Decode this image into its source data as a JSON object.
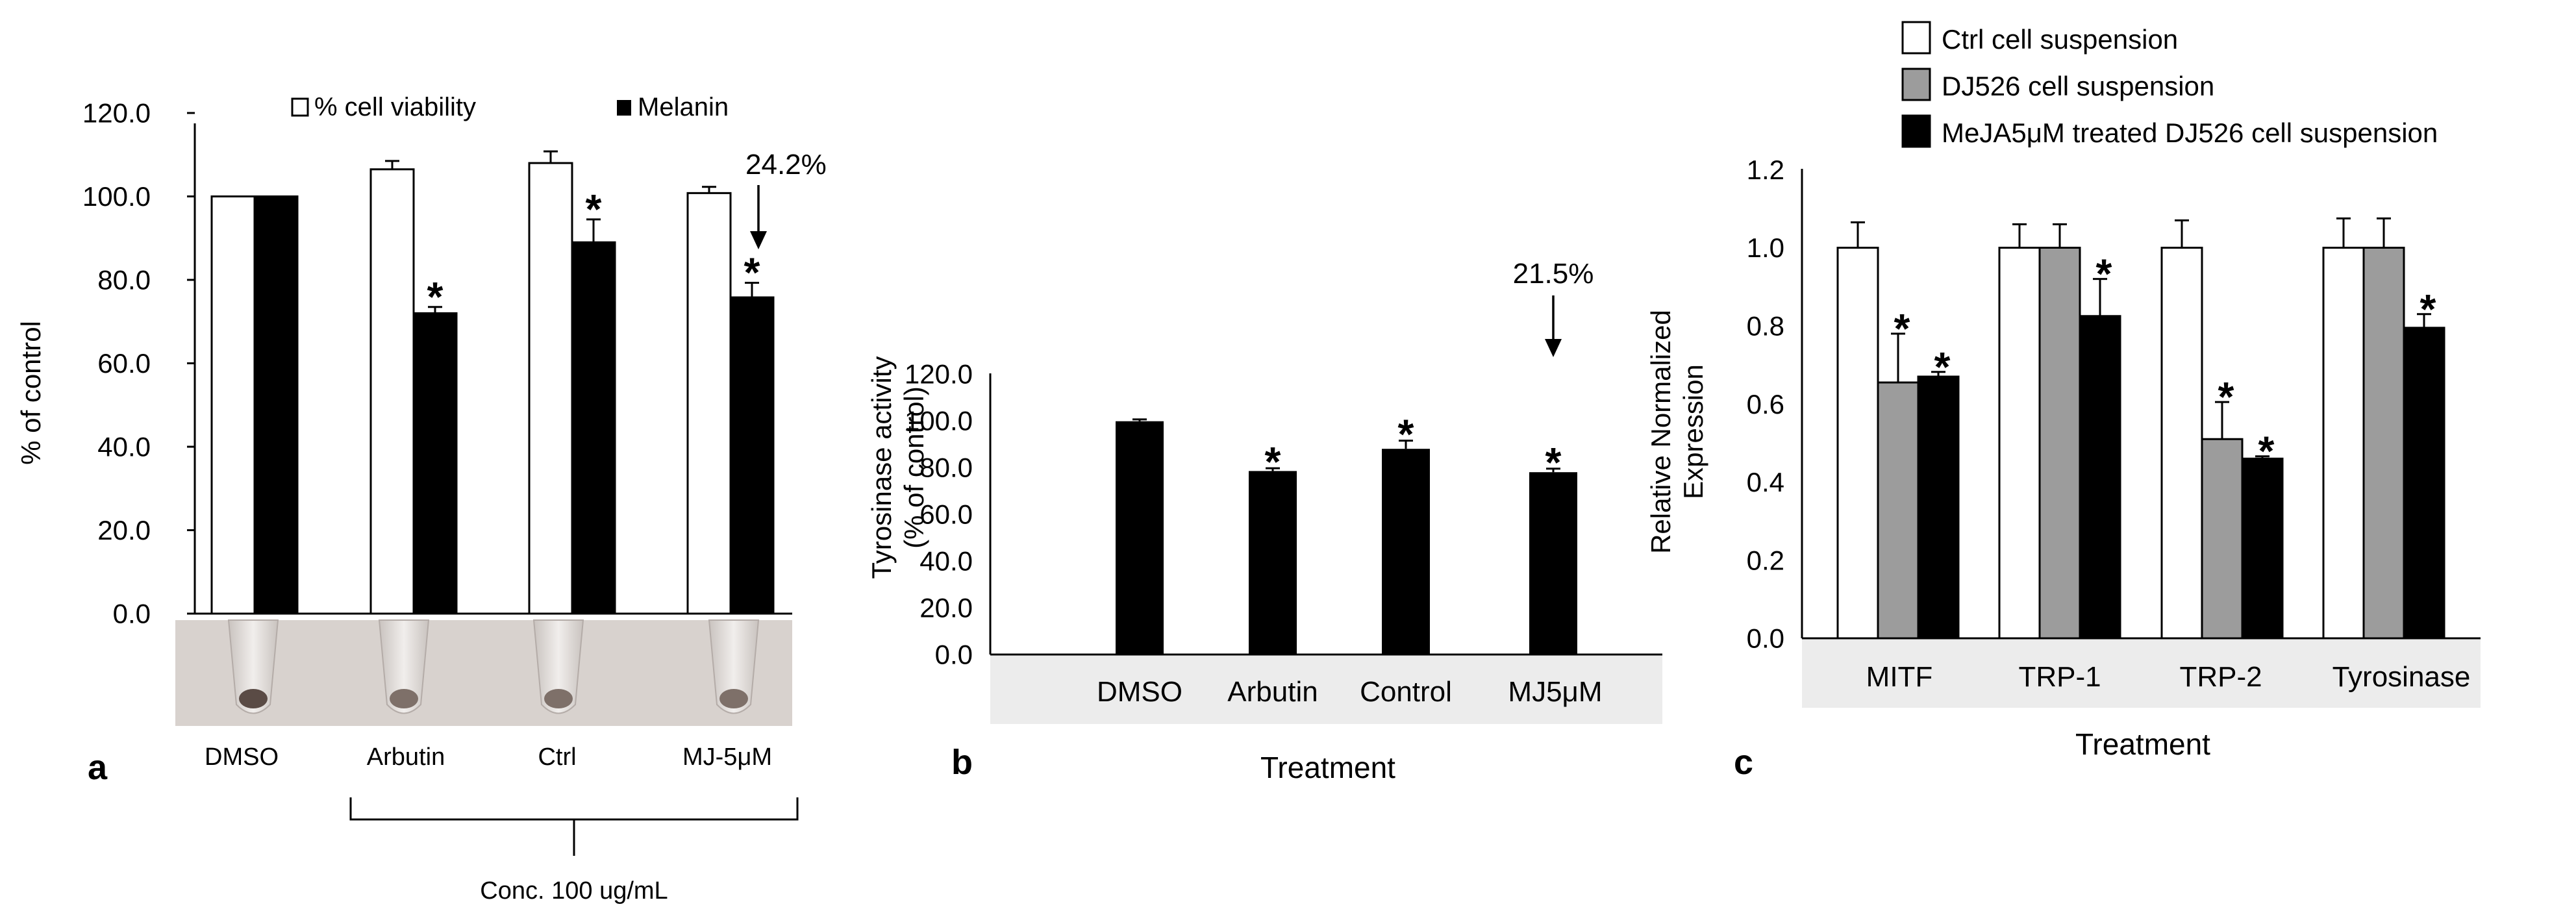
{
  "colors": {
    "white_bar": "#ffffff",
    "gray_bar": "#9c9c9c",
    "black_bar": "#000000",
    "band": "#ececec",
    "tube_band": "#d9d3cf"
  },
  "chart_data": [
    {
      "panel": "a",
      "type": "bar",
      "ylabel": "% of control",
      "ylim": [
        0,
        120
      ],
      "yticks": [
        "0.0",
        "20.0",
        "40.0",
        "60.0",
        "80.0",
        "100.0",
        "120.0"
      ],
      "categories": [
        "DMSO",
        "Arbutin",
        "Ctrl",
        "MJ-5μM"
      ],
      "series": [
        {
          "name": "% cell viability",
          "color": "white",
          "values": [
            100,
            106.5,
            108,
            100.8
          ],
          "errors": [
            0,
            2,
            2.8,
            1.5
          ],
          "sig": [
            false,
            false,
            false,
            false
          ]
        },
        {
          "name": "Melanin",
          "color": "black",
          "values": [
            100,
            72,
            89,
            75.8
          ],
          "errors": [
            0,
            1.5,
            5.5,
            3.5
          ],
          "sig": [
            false,
            true,
            true,
            true
          ]
        }
      ],
      "annotation": "24.2%",
      "legend": [
        "% cell viability",
        "Melanin"
      ],
      "bracket_label": "Conc. 100 ug/mL"
    },
    {
      "panel": "b",
      "type": "bar",
      "ylabel": [
        "Tyrosinase activity",
        "(% of control)"
      ],
      "xlabel": "Treatment",
      "ylim": [
        0,
        120
      ],
      "yticks": [
        "0.0",
        "20.0",
        "40.0",
        "60.0",
        "80.0",
        "100.0",
        "120.0"
      ],
      "categories": [
        "DMSO",
        "Arbutin",
        "Control",
        "MJ5μM"
      ],
      "values": [
        99.8,
        78.5,
        88,
        78
      ],
      "errors": [
        0.8,
        1.2,
        3.5,
        1.5
      ],
      "sig": [
        false,
        true,
        true,
        true
      ],
      "annotation": "21.5%"
    },
    {
      "panel": "c",
      "type": "bar",
      "ylabel": [
        "Relative Normalized",
        "Expression"
      ],
      "xlabel": "Treatment",
      "ylim": [
        0,
        1.2
      ],
      "yticks": [
        "0.0",
        "0.2",
        "0.4",
        "0.6",
        "0.8",
        "1.0",
        "1.2"
      ],
      "categories": [
        "MITF",
        "TRP-1",
        "TRP-2",
        "Tyrosinase"
      ],
      "series": [
        {
          "name": "Ctrl cell suspension",
          "color": "white",
          "values": [
            1.0,
            1.0,
            1.0,
            1.0
          ],
          "errors": [
            0.065,
            0.06,
            0.07,
            0.075
          ],
          "sig": [
            false,
            false,
            false,
            false
          ]
        },
        {
          "name": "DJ526 cell suspension",
          "color": "gray",
          "values": [
            0.655,
            1.0,
            0.51,
            1.0
          ],
          "errors": [
            0.125,
            0.06,
            0.095,
            0.075
          ],
          "sig": [
            true,
            false,
            true,
            false
          ]
        },
        {
          "name": "MeJA5μM treated DJ526 cell suspension",
          "color": "black",
          "values": [
            0.67,
            0.825,
            0.46,
            0.795
          ],
          "errors": [
            0.012,
            0.095,
            0.006,
            0.035
          ],
          "sig": [
            true,
            true,
            true,
            true
          ]
        }
      ],
      "legend": [
        "Ctrl cell suspension",
        "DJ526 cell suspension",
        "MeJA5μM treated DJ526 cell suspension"
      ]
    }
  ],
  "panel_labels": [
    "a",
    "b",
    "c"
  ],
  "sig_mark": "*"
}
